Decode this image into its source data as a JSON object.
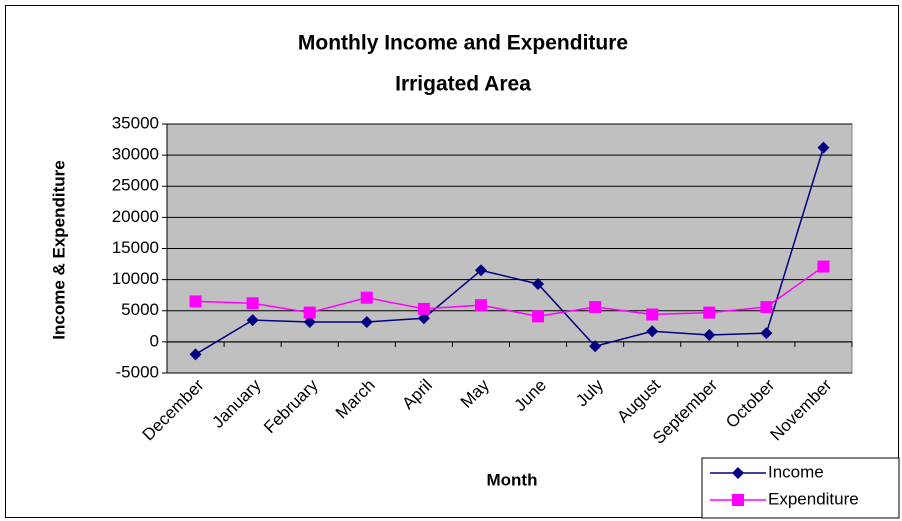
{
  "chart_data": {
    "type": "line",
    "title": "Monthly Income and Expenditure",
    "subtitle": "Irrigated Area",
    "x_label": "Month",
    "y_label": "Income & Expenditure",
    "categories": [
      "December",
      "January",
      "February",
      "March",
      "April",
      "May",
      "June",
      "July",
      "August",
      "September",
      "October",
      "November"
    ],
    "series": [
      {
        "name": "Income",
        "color": "#000080",
        "marker": "diamond",
        "values": [
          -2000,
          3500,
          3200,
          3200,
          3800,
          11500,
          9300,
          -700,
          1700,
          1100,
          1400,
          31200
        ]
      },
      {
        "name": "Expenditure",
        "color": "#ff00ff",
        "marker": "square",
        "values": [
          6500,
          6200,
          4700,
          7100,
          5300,
          5900,
          4100,
          5600,
          4400,
          4700,
          5600,
          12100
        ]
      }
    ],
    "ylim": [
      -5000,
      35000
    ],
    "yticks": [
      -5000,
      0,
      5000,
      10000,
      15000,
      20000,
      25000,
      30000,
      35000
    ],
    "grid": true,
    "legend": "bottom-right"
  }
}
